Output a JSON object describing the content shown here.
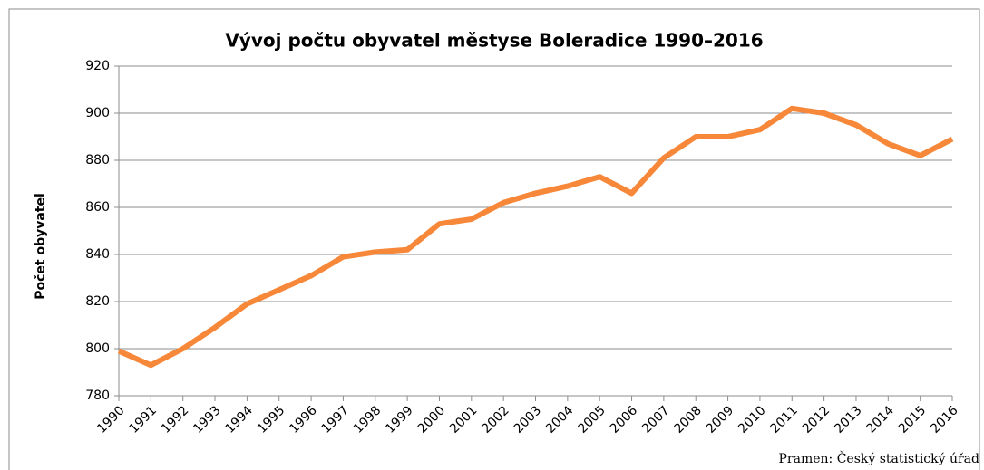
{
  "chart_data": {
    "type": "line",
    "title": "Vývoj počtu obyvatel městyse Boleradice 1990–2016",
    "y_label": "Počet obyvatel",
    "annotation": "Pramen: Český statistický úřad",
    "categories": [
      "1990",
      "1991",
      "1992",
      "1993",
      "1994",
      "1995",
      "1996",
      "1997",
      "1998",
      "1999",
      "2000",
      "2001",
      "2002",
      "2003",
      "2004",
      "2005",
      "2006",
      "2007",
      "2008",
      "2009",
      "2010",
      "2011",
      "2012",
      "2013",
      "2014",
      "2015",
      "2016"
    ],
    "series": [
      {
        "color": "#f7883a",
        "values": [
          799,
          793,
          800,
          809,
          819,
          825,
          831,
          839,
          841,
          842,
          853,
          855,
          862,
          866,
          869,
          873,
          866,
          881,
          890,
          890,
          893,
          902,
          900,
          895,
          887,
          882,
          889
        ]
      }
    ],
    "ylim": [
      780,
      920
    ],
    "yticks": [
      780,
      800,
      820,
      840,
      860,
      880,
      900,
      920
    ],
    "grid": true
  }
}
